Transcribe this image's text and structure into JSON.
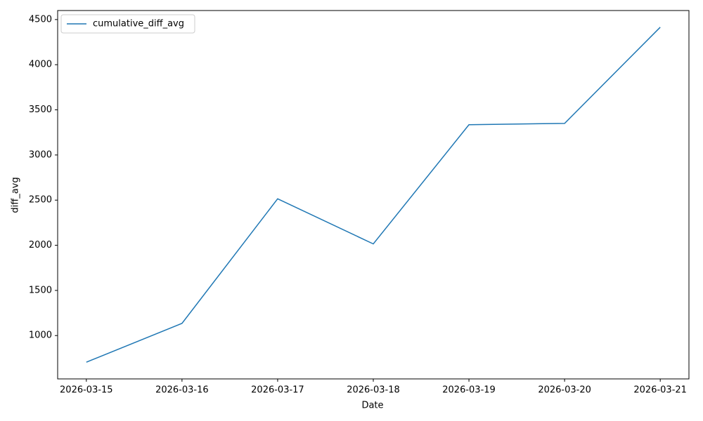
{
  "chart_data": {
    "type": "line",
    "xlabel": "Date",
    "ylabel": "diff_avg",
    "x": [
      "2026-03-15",
      "2026-03-16",
      "2026-03-17",
      "2026-03-18",
      "2026-03-19",
      "2026-03-20",
      "2026-03-21"
    ],
    "series": [
      {
        "name": "cumulative_diff_avg",
        "color": "#1f77b4",
        "values": [
          705,
          1135,
          2515,
          2015,
          3335,
          3350,
          4415
        ]
      }
    ],
    "ylim": [
      520,
      4600
    ],
    "yticks": [
      1000,
      1500,
      2000,
      2500,
      3000,
      3500,
      4000,
      4500
    ],
    "legend": "upper left",
    "grid": false
  }
}
